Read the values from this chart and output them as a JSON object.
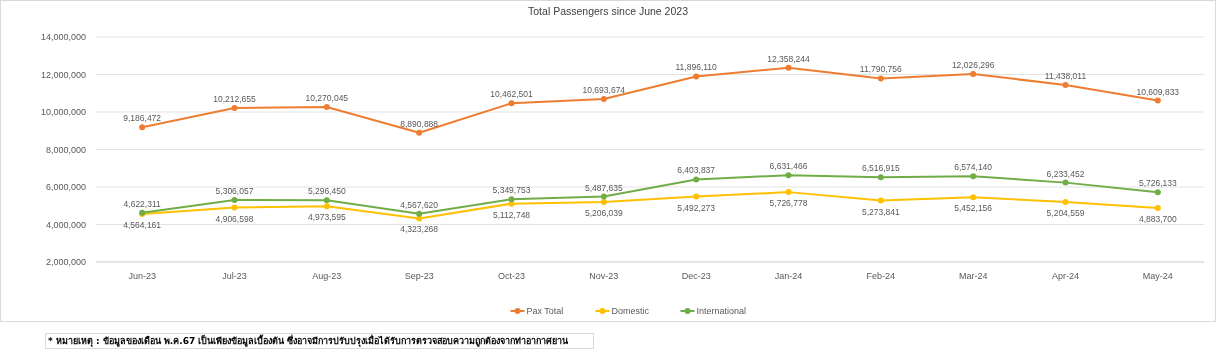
{
  "chart_data": {
    "type": "line",
    "title": "Total Passengers since June 2023",
    "categories": [
      "Jun-23",
      "Jul-23",
      "Aug-23",
      "Sep-23",
      "Oct-23",
      "Nov-23",
      "Dec-23",
      "Jan-24",
      "Feb-24",
      "Mar-24",
      "Apr-24",
      "May-24"
    ],
    "series": [
      {
        "name": "Pax Total",
        "color": "#ed7d31",
        "values": [
          9186472,
          10212655,
          10270045,
          8890888,
          10462501,
          10693674,
          11896110,
          12358244,
          11790756,
          12026296,
          11438011,
          10609833
        ],
        "value_labels": [
          "9,186,472",
          "10,212,655",
          "10,270,045",
          "8,890,888",
          "10,462,501",
          "10,693,674",
          "11,896,110",
          "12,358,244",
          "11,790,756",
          "12,026,296",
          "11,438,011",
          "10,609,833"
        ]
      },
      {
        "name": "Domestic",
        "color": "#ffc000",
        "values": [
          4564161,
          4906598,
          4973595,
          4323268,
          5112748,
          5206039,
          5492273,
          5726778,
          5273841,
          5452156,
          5204559,
          4883700
        ],
        "value_labels": [
          "4,564,161",
          "4,906,598",
          "4,973,595",
          "4,323,268",
          "5,112,748",
          "5,206,039",
          "5,492,273",
          "5,726,778",
          "5,273,841",
          "5,452,156",
          "5,204,559",
          "4,883,700"
        ]
      },
      {
        "name": "International",
        "color": "#70ad47",
        "values": [
          4622311,
          5306057,
          5296450,
          4567620,
          5349753,
          5487635,
          6403837,
          6631466,
          6516915,
          6574140,
          6233452,
          5726133
        ],
        "value_labels": [
          "4,622,311",
          "5,306,057",
          "5,296,450",
          "4,567,620",
          "5,349,753",
          "5,487,635",
          "6,403,837",
          "6,631,466",
          "6,516,915",
          "6,574,140",
          "6,233,452",
          "5,726,133"
        ]
      }
    ],
    "ylim": [
      2000000,
      14000000
    ],
    "yticks": [
      {
        "value": 2000000,
        "label": "2,000,000"
      },
      {
        "value": 4000000,
        "label": "4,000,000"
      },
      {
        "value": 6000000,
        "label": "6,000,000"
      },
      {
        "value": 8000000,
        "label": "8,000,000"
      },
      {
        "value": 10000000,
        "label": "10,000,000"
      },
      {
        "value": 12000000,
        "label": "12,000,000"
      },
      {
        "value": 14000000,
        "label": "14,000,000"
      }
    ],
    "grid": "y",
    "legend": "bottom",
    "marker": "circle",
    "line_style": "solid",
    "annotations": [
      "* หมายเหตุ : ข้อมูลของเดือน พ.ค.67 เป็นเพียงข้อมูลเบื้องต้น ซึ่งอาจมีการปรับปรุงเมื่อได้รับการตรวจสอบความถูกต้องจากท่าอากาศยาน"
    ]
  }
}
